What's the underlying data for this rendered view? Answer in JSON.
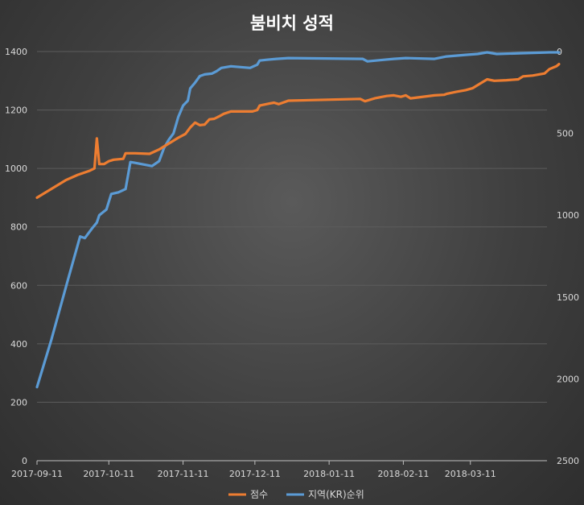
{
  "chart_data": {
    "type": "line",
    "title": "붐비치 성적",
    "grid": "horizontal",
    "legend_position": "bottom",
    "x_axis": {
      "type": "date",
      "min": "2017-09-11",
      "max": "2018-04-12",
      "tick_labels": [
        "2017-09-11",
        "2017-10-11",
        "2017-11-11",
        "2017-12-11",
        "2018-01-11",
        "2018-02-11",
        "2018-03-11"
      ]
    },
    "y_axis_left": {
      "min": 0,
      "max": 1400,
      "ticks": [
        0,
        200,
        400,
        600,
        800,
        1000,
        1200,
        1400
      ]
    },
    "y_axis_right": {
      "min": 0,
      "max": 2500,
      "reversed": true,
      "ticks": [
        0,
        500,
        1000,
        1500,
        2000,
        2500
      ]
    },
    "series": [
      {
        "name": "점수",
        "color": "#ed7d31",
        "axis": "left",
        "points": [
          [
            "2017-09-11",
            900
          ],
          [
            "2017-09-23",
            960
          ],
          [
            "2017-09-28",
            978
          ],
          [
            "2017-10-03",
            992
          ],
          [
            "2017-10-05",
            1000
          ],
          [
            "2017-10-06",
            1103
          ],
          [
            "2017-10-07",
            1015
          ],
          [
            "2017-10-09",
            1015
          ],
          [
            "2017-10-11",
            1025
          ],
          [
            "2017-10-13",
            1030
          ],
          [
            "2017-10-17",
            1033
          ],
          [
            "2017-10-18",
            1052
          ],
          [
            "2017-10-22",
            1052
          ],
          [
            "2017-10-28",
            1050
          ],
          [
            "2017-11-01",
            1065
          ],
          [
            "2017-11-03",
            1075
          ],
          [
            "2017-11-06",
            1090
          ],
          [
            "2017-11-09",
            1105
          ],
          [
            "2017-11-12",
            1118
          ],
          [
            "2017-11-14",
            1140
          ],
          [
            "2017-11-16",
            1157
          ],
          [
            "2017-11-18",
            1148
          ],
          [
            "2017-11-20",
            1150
          ],
          [
            "2017-11-22",
            1168
          ],
          [
            "2017-11-24",
            1170
          ],
          [
            "2017-11-26",
            1178
          ],
          [
            "2017-11-28",
            1187
          ],
          [
            "2017-12-01",
            1195
          ],
          [
            "2017-12-10",
            1195
          ],
          [
            "2017-12-12",
            1200
          ],
          [
            "2017-12-13",
            1215
          ],
          [
            "2017-12-17",
            1222
          ],
          [
            "2017-12-19",
            1225
          ],
          [
            "2017-12-21",
            1220
          ],
          [
            "2017-12-25",
            1232
          ],
          [
            "2018-01-24",
            1238
          ],
          [
            "2018-01-26",
            1230
          ],
          [
            "2018-01-30",
            1240
          ],
          [
            "2018-02-04",
            1248
          ],
          [
            "2018-02-07",
            1250
          ],
          [
            "2018-02-10",
            1245
          ],
          [
            "2018-02-12",
            1250
          ],
          [
            "2018-02-14",
            1240
          ],
          [
            "2018-02-17",
            1243
          ],
          [
            "2018-02-24",
            1250
          ],
          [
            "2018-02-28",
            1252
          ],
          [
            "2018-03-01",
            1255
          ],
          [
            "2018-03-05",
            1262
          ],
          [
            "2018-03-09",
            1268
          ],
          [
            "2018-03-12",
            1275
          ],
          [
            "2018-03-15",
            1290
          ],
          [
            "2018-03-18",
            1305
          ],
          [
            "2018-03-21",
            1300
          ],
          [
            "2018-03-26",
            1302
          ],
          [
            "2018-03-31",
            1305
          ],
          [
            "2018-04-02",
            1315
          ],
          [
            "2018-04-06",
            1318
          ],
          [
            "2018-04-11",
            1325
          ],
          [
            "2018-04-13",
            1340
          ],
          [
            "2018-04-16",
            1350
          ],
          [
            "2018-04-17",
            1357
          ]
        ]
      },
      {
        "name": "지역(KR)순위",
        "color": "#5b9bd5",
        "axis": "right",
        "points": [
          [
            "2017-09-11",
            2050
          ],
          [
            "2017-09-17",
            1760
          ],
          [
            "2017-09-24",
            1390
          ],
          [
            "2017-09-29",
            1130
          ],
          [
            "2017-10-01",
            1140
          ],
          [
            "2017-10-04",
            1080
          ],
          [
            "2017-10-06",
            1045
          ],
          [
            "2017-10-07",
            1000
          ],
          [
            "2017-10-10",
            965
          ],
          [
            "2017-10-12",
            870
          ],
          [
            "2017-10-15",
            860
          ],
          [
            "2017-10-18",
            840
          ],
          [
            "2017-10-20",
            675
          ],
          [
            "2017-10-22",
            680
          ],
          [
            "2017-10-29",
            700
          ],
          [
            "2017-11-01",
            670
          ],
          [
            "2017-11-03",
            590
          ],
          [
            "2017-11-05",
            540
          ],
          [
            "2017-11-07",
            500
          ],
          [
            "2017-11-09",
            400
          ],
          [
            "2017-11-11",
            330
          ],
          [
            "2017-11-13",
            300
          ],
          [
            "2017-11-14",
            225
          ],
          [
            "2017-11-16",
            190
          ],
          [
            "2017-11-18",
            150
          ],
          [
            "2017-11-20",
            140
          ],
          [
            "2017-11-23",
            135
          ],
          [
            "2017-11-25",
            120
          ],
          [
            "2017-11-27",
            100
          ],
          [
            "2017-12-01",
            90
          ],
          [
            "2017-12-09",
            100
          ],
          [
            "2017-12-12",
            80
          ],
          [
            "2017-12-13",
            55
          ],
          [
            "2017-12-16",
            50
          ],
          [
            "2017-12-20",
            45
          ],
          [
            "2017-12-25",
            40
          ],
          [
            "2018-01-25",
            45
          ],
          [
            "2018-01-27",
            60
          ],
          [
            "2018-02-03",
            50
          ],
          [
            "2018-02-07",
            45
          ],
          [
            "2018-02-12",
            40
          ],
          [
            "2018-02-24",
            45
          ],
          [
            "2018-03-01",
            30
          ],
          [
            "2018-03-09",
            20
          ],
          [
            "2018-03-14",
            15
          ],
          [
            "2018-03-18",
            5
          ],
          [
            "2018-03-22",
            15
          ],
          [
            "2018-04-02",
            10
          ],
          [
            "2018-04-13",
            5
          ],
          [
            "2018-04-17",
            5
          ]
        ]
      }
    ]
  }
}
